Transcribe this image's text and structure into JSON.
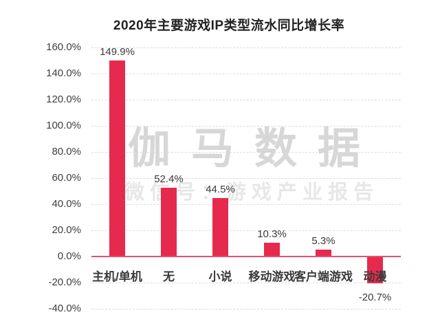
{
  "title": "2020年主要游戏IP类型流水同比增长率",
  "watermark": {
    "main": "伽马数据",
    "sub": "微信号：游戏产业报告"
  },
  "colors": {
    "bar": "#e62a4d",
    "zero_line": "#e0536a",
    "grid": "#dcdcdc",
    "title_text": "#222222",
    "axis_text": "#3d3d3d",
    "watermark_main": "#d7d7d7",
    "watermark_sub": "#e7e7e7",
    "background": "#ffffff"
  },
  "chart_data": {
    "type": "bar",
    "title": "2020年主要游戏IP类型流水同比增长率",
    "categories": [
      "主机/单机",
      "无",
      "小说",
      "移动游戏",
      "客户端游戏",
      "动漫"
    ],
    "values": [
      149.9,
      52.4,
      44.5,
      10.3,
      5.3,
      -20.7
    ],
    "value_labels": [
      "149.9%",
      "52.4%",
      "44.5%",
      "10.3%",
      "5.3%",
      "-20.7%"
    ],
    "xlabel": "",
    "ylabel": "",
    "ylim": [
      -40,
      160
    ],
    "ytick_step": 20,
    "ytick_labels": [
      "160.0%",
      "140.0%",
      "120.0%",
      "100.0%",
      "80.0%",
      "60.0%",
      "40.0%",
      "20.0%",
      "0.0%",
      "-20.0%",
      "-40.0%"
    ],
    "grid": "horizontal-dashed",
    "legend_position": "none",
    "bar_color": "#e62a4d"
  }
}
